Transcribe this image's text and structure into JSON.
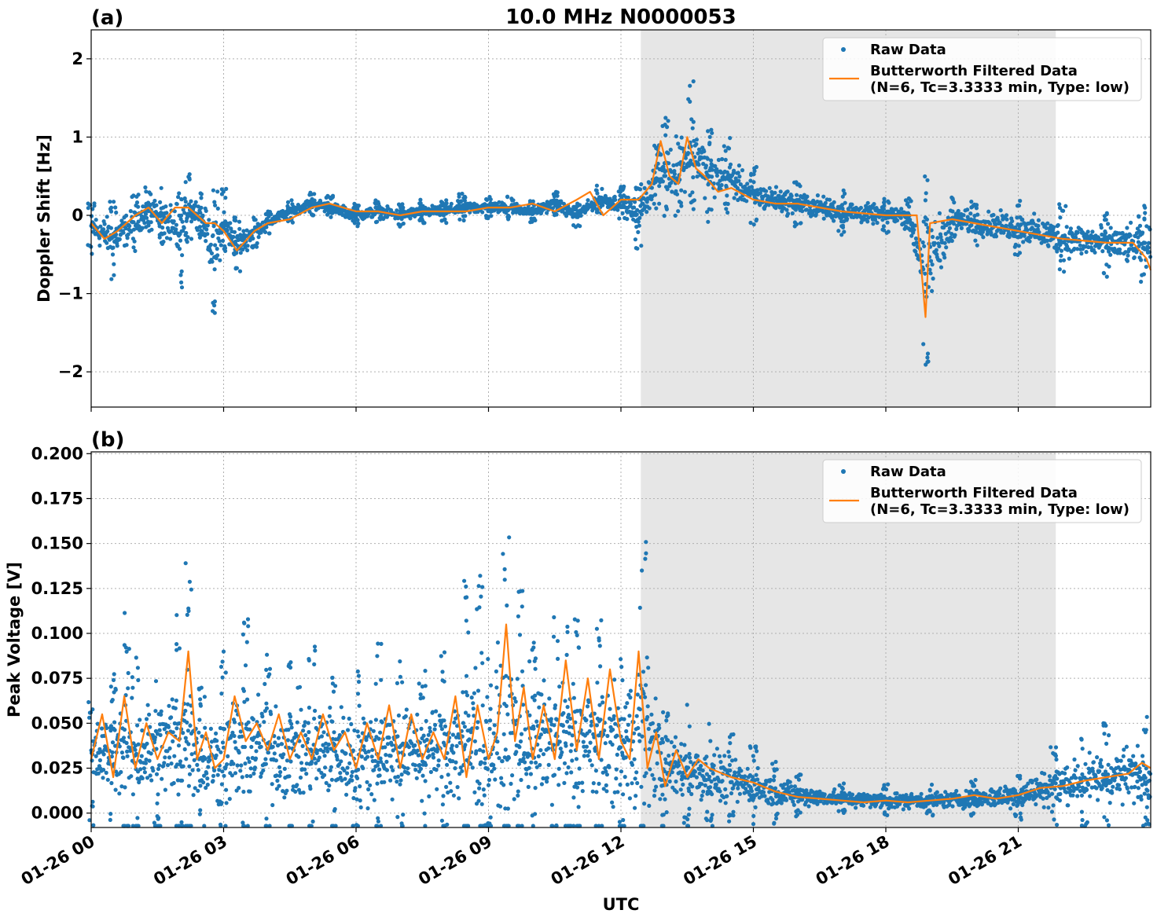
{
  "chart_data": [
    {
      "panel_label": "(a)",
      "type": "scatter",
      "title": "10.0 MHz N0000053",
      "xlabel": "",
      "ylabel": "Doppler Shift [Hz]",
      "xlim": [
        "01-26 00:00",
        "01-26 24:00"
      ],
      "ylim": [
        -2.45,
        2.37
      ],
      "yticks": [
        -2,
        -1,
        0,
        1,
        2
      ],
      "ytick_labels": [
        "−2",
        "−1",
        "0",
        "1",
        "2"
      ],
      "grid": true,
      "legend_position": "top-right",
      "shaded_region": {
        "x_start": "01-26 12:27",
        "x_end": "01-26 21:51",
        "color": "#e6e6e6"
      },
      "series": [
        {
          "name": "Raw Data",
          "kind": "scatter",
          "color": "#1f77b4",
          "x_hours": [
            0,
            0.5,
            1.0,
            1.3,
            1.6,
            2.0,
            2.2,
            2.5,
            2.8,
            3.0,
            3.3,
            3.7,
            4.0,
            4.5,
            5.0,
            5.4,
            6.0,
            6.5,
            7.0,
            7.5,
            8.0,
            8.4,
            9.0,
            9.5,
            10.0,
            10.5,
            11.0,
            11.5,
            12.0,
            12.4,
            12.8,
            13.0,
            13.3,
            13.6,
            14.0,
            14.4,
            15.0,
            16.0,
            17.0,
            18.0,
            18.5,
            18.9,
            19.5,
            20.0,
            21.0,
            22.0,
            23.0,
            23.8
          ],
          "y_center": [
            -0.15,
            -0.3,
            -0.1,
            0.1,
            0.0,
            -0.3,
            0.1,
            0.0,
            -0.5,
            -0.1,
            -0.4,
            -0.2,
            -0.1,
            0.05,
            0.15,
            0.1,
            0.0,
            0.05,
            0.0,
            0.05,
            0.05,
            0.1,
            0.1,
            0.1,
            0.05,
            0.15,
            0.0,
            0.2,
            0.15,
            0.0,
            0.5,
            0.6,
            0.5,
            0.9,
            0.5,
            0.5,
            0.25,
            0.15,
            0.05,
            0.0,
            0.0,
            -0.7,
            -0.05,
            -0.1,
            -0.15,
            -0.3,
            -0.35,
            -0.4
          ],
          "y_spread": [
            0.25,
            0.35,
            0.25,
            0.2,
            0.25,
            0.45,
            0.3,
            0.2,
            0.55,
            0.3,
            0.25,
            0.15,
            0.1,
            0.1,
            0.1,
            0.1,
            0.1,
            0.1,
            0.1,
            0.1,
            0.1,
            0.12,
            0.1,
            0.1,
            0.1,
            0.1,
            0.1,
            0.12,
            0.15,
            0.3,
            0.3,
            0.45,
            0.35,
            0.6,
            0.4,
            0.35,
            0.25,
            0.2,
            0.2,
            0.15,
            0.15,
            0.9,
            0.2,
            0.2,
            0.25,
            0.3,
            0.3,
            0.35
          ]
        },
        {
          "name": "Butterworth Filtered Data\n(N=6, Tc=3.3333 min, Type: low)",
          "kind": "line",
          "color": "#ff7f0e",
          "x_hours": [
            0,
            0.3,
            0.6,
            1.0,
            1.3,
            1.6,
            1.9,
            2.2,
            2.6,
            2.8,
            3.0,
            3.3,
            3.7,
            4.0,
            4.5,
            5.0,
            5.4,
            6.0,
            6.5,
            7.0,
            7.5,
            8.0,
            8.5,
            9.0,
            9.5,
            10.0,
            10.5,
            11.0,
            11.3,
            11.6,
            12.0,
            12.4,
            12.7,
            12.9,
            13.1,
            13.3,
            13.5,
            13.7,
            13.9,
            14.2,
            14.5,
            15.0,
            15.5,
            16.0,
            17.0,
            18.0,
            18.7,
            18.9,
            19.0,
            19.5,
            20.0,
            21.0,
            22.0,
            23.0,
            23.6,
            23.9,
            24.0
          ],
          "y": [
            -0.1,
            -0.3,
            -0.2,
            0.0,
            0.1,
            -0.1,
            0.1,
            0.1,
            -0.1,
            -0.1,
            -0.2,
            -0.45,
            -0.2,
            -0.1,
            -0.05,
            0.1,
            0.15,
            0.05,
            0.05,
            0.0,
            0.05,
            0.05,
            0.05,
            0.1,
            0.1,
            0.15,
            0.05,
            0.2,
            0.3,
            0.0,
            0.2,
            0.2,
            0.4,
            0.95,
            0.5,
            0.4,
            1.0,
            0.6,
            0.5,
            0.3,
            0.35,
            0.2,
            0.15,
            0.15,
            0.05,
            0.0,
            0.0,
            -1.3,
            -0.1,
            -0.05,
            -0.1,
            -0.2,
            -0.3,
            -0.35,
            -0.35,
            -0.55,
            -0.7
          ]
        }
      ]
    },
    {
      "panel_label": "(b)",
      "type": "scatter",
      "title": "",
      "xlabel": "UTC",
      "ylabel": "Peak Voltage [V]",
      "xlim": [
        "01-26 00:00",
        "01-26 24:00"
      ],
      "ylim": [
        -0.008,
        0.201
      ],
      "yticks": [
        0.0,
        0.025,
        0.05,
        0.075,
        0.1,
        0.125,
        0.15,
        0.175,
        0.2
      ],
      "ytick_labels": [
        "0.000",
        "0.025",
        "0.050",
        "0.075",
        "0.100",
        "0.125",
        "0.150",
        "0.175",
        "0.200"
      ],
      "xticks_hours": [
        0,
        3,
        6,
        9,
        12,
        15,
        18,
        21
      ],
      "xtick_labels": [
        "01-26 00",
        "01-26 03",
        "01-26 06",
        "01-26 09",
        "01-26 12",
        "01-26 15",
        "01-26 18",
        "01-26 21"
      ],
      "grid": true,
      "legend_position": "top-right",
      "shaded_region": {
        "x_start": "01-26 12:27",
        "x_end": "01-26 21:51",
        "color": "#e6e6e6"
      },
      "series": [
        {
          "name": "Raw Data",
          "kind": "scatter",
          "color": "#1f77b4",
          "x_hours": [
            0,
            0.5,
            0.8,
            1.0,
            1.5,
            2.0,
            2.2,
            2.5,
            3.0,
            3.5,
            4.0,
            4.5,
            5.0,
            5.5,
            6.0,
            6.5,
            7.0,
            7.5,
            8.0,
            8.5,
            8.8,
            9.0,
            9.4,
            9.7,
            10.0,
            10.5,
            10.8,
            11.0,
            11.5,
            12.0,
            12.5,
            13.0,
            13.5,
            14.0,
            14.5,
            15.0,
            15.5,
            16.0,
            17.0,
            18.0,
            19.0,
            20.0,
            21.0,
            21.8,
            22.5,
            23.0,
            23.9
          ],
          "y_center": [
            0.03,
            0.035,
            0.04,
            0.035,
            0.035,
            0.04,
            0.05,
            0.03,
            0.03,
            0.04,
            0.035,
            0.035,
            0.035,
            0.035,
            0.03,
            0.035,
            0.035,
            0.035,
            0.035,
            0.04,
            0.045,
            0.035,
            0.045,
            0.04,
            0.04,
            0.04,
            0.04,
            0.04,
            0.04,
            0.035,
            0.05,
            0.025,
            0.025,
            0.02,
            0.018,
            0.015,
            0.012,
            0.01,
            0.008,
            0.007,
            0.007,
            0.008,
            0.01,
            0.015,
            0.018,
            0.02,
            0.022
          ],
          "y_spread": [
            0.025,
            0.03,
            0.05,
            0.04,
            0.04,
            0.05,
            0.06,
            0.03,
            0.04,
            0.05,
            0.04,
            0.04,
            0.04,
            0.035,
            0.04,
            0.04,
            0.035,
            0.03,
            0.04,
            0.06,
            0.07,
            0.04,
            0.08,
            0.06,
            0.04,
            0.05,
            0.05,
            0.05,
            0.05,
            0.04,
            0.07,
            0.025,
            0.025,
            0.02,
            0.018,
            0.015,
            0.012,
            0.008,
            0.006,
            0.006,
            0.006,
            0.007,
            0.01,
            0.015,
            0.018,
            0.02,
            0.022
          ]
        },
        {
          "name": "Butterworth Filtered Data\n(N=6, Tc=3.3333 min, Type: low)",
          "kind": "line",
          "color": "#ff7f0e",
          "x_hours": [
            0,
            0.25,
            0.5,
            0.75,
            1.0,
            1.25,
            1.5,
            1.75,
            2.0,
            2.2,
            2.4,
            2.6,
            2.8,
            3.0,
            3.25,
            3.5,
            3.75,
            4.0,
            4.25,
            4.5,
            4.75,
            5.0,
            5.25,
            5.5,
            5.75,
            6.0,
            6.25,
            6.5,
            6.75,
            7.0,
            7.25,
            7.5,
            7.75,
            8.0,
            8.25,
            8.5,
            8.75,
            9.0,
            9.2,
            9.4,
            9.6,
            9.8,
            10.0,
            10.25,
            10.5,
            10.75,
            11.0,
            11.25,
            11.5,
            11.75,
            12.0,
            12.2,
            12.4,
            12.6,
            12.8,
            13.0,
            13.25,
            13.5,
            13.75,
            14.0,
            14.5,
            15.0,
            15.5,
            16.0,
            16.5,
            17.0,
            17.5,
            18.0,
            18.5,
            19.0,
            19.5,
            20.0,
            20.5,
            21.0,
            21.5,
            22.0,
            22.5,
            23.0,
            23.5,
            23.8,
            24.0
          ],
          "y": [
            0.03,
            0.055,
            0.02,
            0.065,
            0.025,
            0.05,
            0.03,
            0.045,
            0.04,
            0.09,
            0.03,
            0.045,
            0.025,
            0.03,
            0.065,
            0.04,
            0.05,
            0.035,
            0.055,
            0.03,
            0.045,
            0.03,
            0.055,
            0.035,
            0.045,
            0.025,
            0.05,
            0.03,
            0.06,
            0.025,
            0.055,
            0.03,
            0.045,
            0.03,
            0.065,
            0.02,
            0.06,
            0.03,
            0.045,
            0.105,
            0.04,
            0.07,
            0.03,
            0.06,
            0.03,
            0.085,
            0.035,
            0.075,
            0.03,
            0.08,
            0.04,
            0.03,
            0.09,
            0.025,
            0.045,
            0.015,
            0.035,
            0.02,
            0.03,
            0.025,
            0.02,
            0.017,
            0.012,
            0.009,
            0.008,
            0.007,
            0.006,
            0.007,
            0.006,
            0.007,
            0.008,
            0.01,
            0.008,
            0.01,
            0.014,
            0.015,
            0.018,
            0.02,
            0.022,
            0.028,
            0.025
          ]
        }
      ]
    }
  ]
}
